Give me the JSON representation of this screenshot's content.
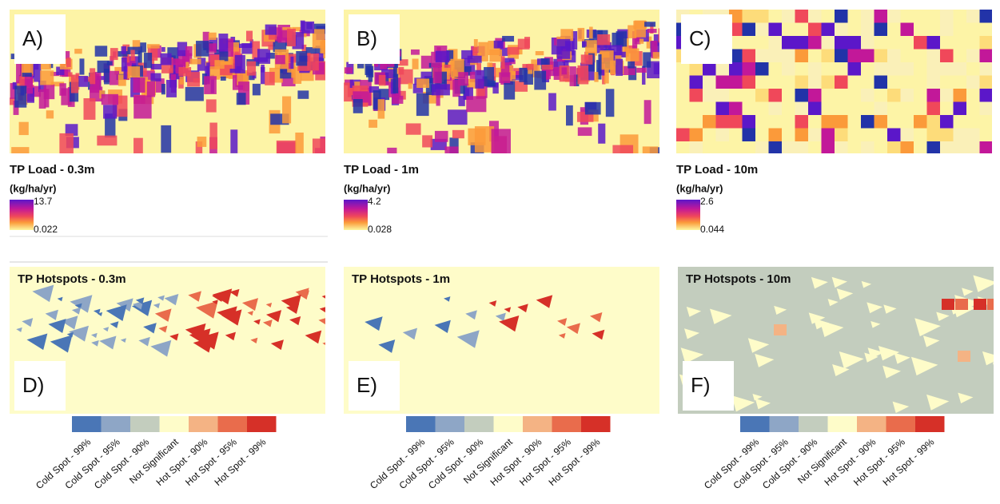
{
  "load_panels": [
    {
      "label": "A)",
      "title": "TP Load - 0.3m",
      "unit": "(kg/ha/yr)",
      "max": 13.7,
      "min": 0.022
    },
    {
      "label": "B)",
      "title": "TP Load - 1m",
      "unit": "(kg/ha/yr)",
      "max": 4.2,
      "min": 0.028
    },
    {
      "label": "C)",
      "title": "TP Load - 10m",
      "unit": "(kg/ha/yr)",
      "max": 2.6,
      "min": 0.044
    }
  ],
  "hotspot_panels": [
    {
      "label": "D)",
      "title": "TP Hotspots - 0.3m"
    },
    {
      "label": "E)",
      "title": "TP Hotspots - 1m"
    },
    {
      "label": "F)",
      "title": "TP Hotspots - 10m"
    }
  ],
  "hotspot_legend": {
    "labels": [
      "Cold Spot - 99%",
      "Cold Spot - 95%",
      "Cold Spot - 90%",
      "Not Significant",
      "Hot Spot - 90%",
      "Hot Spot - 95%",
      "Hot Spot - 99%"
    ],
    "colors": [
      "#4a76b6",
      "#8ea6c6",
      "#c3cdbe",
      "#fefcc9",
      "#f4b384",
      "#e96c4c",
      "#d63028"
    ]
  }
}
